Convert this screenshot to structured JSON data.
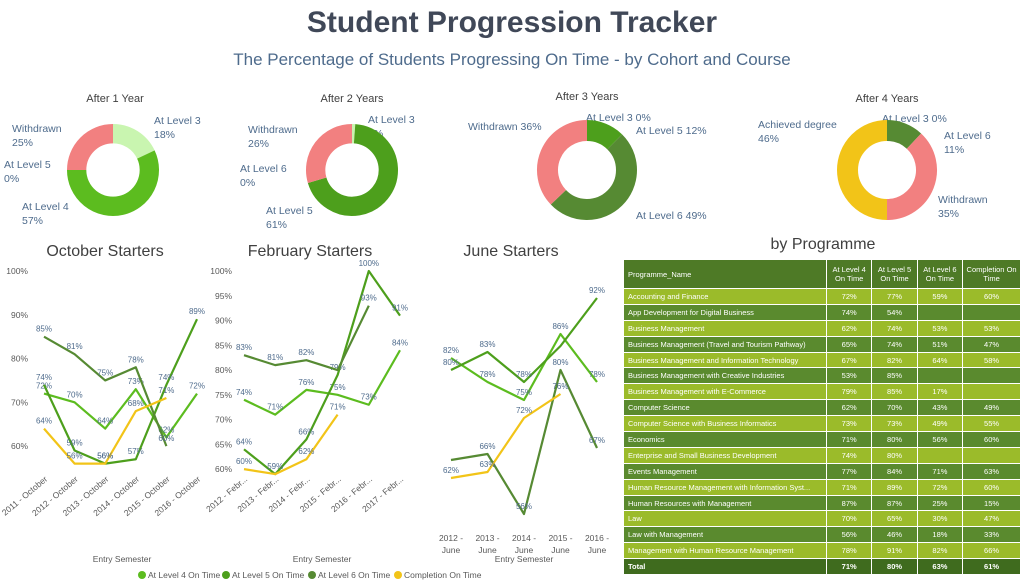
{
  "header": {
    "title": "Student Progression Tracker",
    "subtitle": "The Percentage of Students Progressing On Time - by Cohort and Course"
  },
  "colors": {
    "level3": "#c9f5b0",
    "level4": "#5cbc1f",
    "level5": "#4d9f1c",
    "level6": "#568a33",
    "withdrawn": "#f28080",
    "degree": "#f2c418",
    "completion": "#f2c418",
    "table_header": "#4e7a26",
    "table_light": "#9bbb2a",
    "table_dark": "#5a8a2e"
  },
  "chart_data": [
    {
      "type": "pie",
      "title": "After 1 Year",
      "slices": [
        {
          "label": "At Level 3",
          "value": 18,
          "color": "#c9f5b0"
        },
        {
          "label": "At Level 4",
          "value": 57,
          "color": "#5cbc1f"
        },
        {
          "label": "At Level 5",
          "value": 0,
          "color": "#4d9f1c"
        },
        {
          "label": "Withdrawn",
          "value": 25,
          "color": "#f28080"
        }
      ]
    },
    {
      "type": "pie",
      "title": "After 2 Years",
      "slices": [
        {
          "label": "At Level 3",
          "value": 1,
          "color": "#c9f5b0"
        },
        {
          "label": "At Level 5",
          "value": 61,
          "color": "#4d9f1c"
        },
        {
          "label": "At Level 6",
          "value": 0,
          "color": "#568a33"
        },
        {
          "label": "Withdrawn",
          "value": 26,
          "color": "#f28080"
        }
      ]
    },
    {
      "type": "pie",
      "title": "After 3 Years",
      "slices": [
        {
          "label": "At Level 3",
          "value": 0,
          "color": "#c9f5b0"
        },
        {
          "label": "At Level 5",
          "value": 12,
          "color": "#4d9f1c"
        },
        {
          "label": "At Level 6",
          "value": 49,
          "color": "#568a33"
        },
        {
          "label": "Withdrawn",
          "value": 36,
          "color": "#f28080"
        }
      ]
    },
    {
      "type": "pie",
      "title": "After 4 Years",
      "slices": [
        {
          "label": "At Level 3",
          "value": 0,
          "color": "#c9f5b0"
        },
        {
          "label": "At Level 6",
          "value": 11,
          "color": "#568a33"
        },
        {
          "label": "Withdrawn",
          "value": 35,
          "color": "#f28080"
        },
        {
          "label": "Achieved degree",
          "value": 46,
          "color": "#f2c418"
        }
      ]
    },
    {
      "type": "line",
      "title": "October Starters",
      "xlabel": "Entry Semester",
      "categories": [
        "2011 - October",
        "2012 - October",
        "2013 - October",
        "2014 - October",
        "2015 - October",
        "2016 - October"
      ],
      "yticks": [
        "60%",
        "70%",
        "80%",
        "90%",
        "100%"
      ],
      "ylim": [
        55,
        100
      ],
      "series": [
        {
          "name": "At Level 4 On Time",
          "color": "#5cbc1f",
          "values": [
            72,
            70,
            64,
            73,
            62,
            72
          ],
          "labels": [
            "72%",
            "70%",
            "64%",
            "73%",
            "62%",
            "72%"
          ]
        },
        {
          "name": "At Level 5 On Time",
          "color": "#4d9f1c",
          "values": [
            74,
            59,
            56,
            57,
            74,
            89
          ],
          "labels": [
            "74%",
            "59%",
            "56%",
            "57%",
            "74%",
            "89%"
          ]
        },
        {
          "name": "At Level 6 On Time",
          "color": "#568a33",
          "values": [
            85,
            81,
            75,
            78,
            60,
            null
          ],
          "labels": [
            "85%",
            "81%",
            "75%",
            "78%",
            "60%",
            ""
          ]
        },
        {
          "name": "Completion On Time",
          "color": "#f2c418",
          "values": [
            64,
            56,
            56,
            68,
            71,
            null
          ],
          "labels": [
            "64%",
            "56%",
            "56%",
            "68%",
            "71%",
            ""
          ]
        }
      ]
    },
    {
      "type": "line",
      "title": "February Starters",
      "xlabel": "Entry Semester",
      "categories": [
        "2012 - February",
        "2013 - February",
        "2014 - February",
        "2015 - February",
        "2016 - February",
        "2017 - February"
      ],
      "yticks": [
        "60%",
        "65%",
        "70%",
        "75%",
        "80%",
        "85%",
        "90%",
        "95%",
        "100%"
      ],
      "ylim": [
        57,
        100
      ],
      "series": [
        {
          "name": "At Level 4 On Time",
          "color": "#5cbc1f",
          "values": [
            74,
            71,
            76,
            75,
            73,
            84
          ],
          "labels": [
            "74%",
            "71%",
            "76%",
            "75%",
            "73%",
            "84%"
          ]
        },
        {
          "name": "At Level 5 On Time",
          "color": "#4d9f1c",
          "values": [
            64,
            59,
            66,
            79,
            100,
            91
          ],
          "labels": [
            "64%",
            "59%",
            "66%",
            "79%",
            "100%",
            "91%"
          ]
        },
        {
          "name": "At Level 6 On Time",
          "color": "#568a33",
          "values": [
            83,
            81,
            82,
            80,
            93,
            null
          ],
          "labels": [
            "83%",
            "81%",
            "82%",
            "",
            "93%",
            ""
          ]
        },
        {
          "name": "Completion On Time",
          "color": "#f2c418",
          "values": [
            60,
            59,
            62,
            71,
            null,
            null
          ],
          "labels": [
            "60%",
            "",
            "62%",
            "71%",
            "",
            ""
          ]
        }
      ]
    },
    {
      "type": "line",
      "title": "June Starters",
      "xlabel": "Entry Semester",
      "categories": [
        "2012 - June",
        "2013 - June",
        "2014 - June",
        "2015 - June",
        "2016 - June"
      ],
      "ylim": [
        55,
        95
      ],
      "series": [
        {
          "name": "At Level 4 On Time",
          "color": "#5cbc1f",
          "values": [
            82,
            78,
            75,
            86,
            78
          ],
          "labels": [
            "82%",
            "78%",
            "75%",
            "86%",
            "78%"
          ]
        },
        {
          "name": "At Level 5 On Time",
          "color": "#4d9f1c",
          "values": [
            80,
            83,
            78,
            84,
            92
          ],
          "labels": [
            "80%",
            "83%",
            "78%",
            "",
            "92%"
          ]
        },
        {
          "name": "At Level 6 On Time",
          "color": "#568a33",
          "values": [
            65,
            66,
            56,
            80,
            67
          ],
          "labels": [
            "",
            "66%",
            "56%",
            "80%",
            "67%"
          ]
        },
        {
          "name": "Completion On Time",
          "color": "#f2c418",
          "values": [
            62,
            63,
            72,
            76,
            null
          ],
          "labels": [
            "62%",
            "63%",
            "72%",
            "76%",
            ""
          ]
        }
      ]
    },
    {
      "type": "table",
      "title": "by Programme",
      "columns": [
        "Programme_Name",
        "At Level 4 On Time",
        "At Level 5 On Time",
        "At Level 6 On Time",
        "Completion On Time"
      ],
      "rows": [
        [
          "Accounting and Finance",
          "72%",
          "77%",
          "59%",
          "60%"
        ],
        [
          "App Development for Digital Business",
          "74%",
          "54%",
          "",
          ""
        ],
        [
          "Business Management",
          "62%",
          "74%",
          "53%",
          "53%"
        ],
        [
          "Business Management (Travel and Tourism Pathway)",
          "65%",
          "74%",
          "51%",
          "47%"
        ],
        [
          "Business Management and Information Technology",
          "67%",
          "82%",
          "64%",
          "58%"
        ],
        [
          "Business Management with Creative Industries",
          "53%",
          "85%",
          "",
          ""
        ],
        [
          "Business Management with E-Commerce",
          "79%",
          "85%",
          "17%",
          ""
        ],
        [
          "Computer Science",
          "62%",
          "70%",
          "43%",
          "49%"
        ],
        [
          "Computer Science with Business Informatics",
          "73%",
          "73%",
          "49%",
          "55%"
        ],
        [
          "Economics",
          "71%",
          "80%",
          "56%",
          "60%"
        ],
        [
          "Enterprise and Small Business Development",
          "74%",
          "80%",
          "",
          ""
        ],
        [
          "Events Management",
          "77%",
          "84%",
          "71%",
          "63%"
        ],
        [
          "Human Resource Management with Information Syst...",
          "71%",
          "89%",
          "72%",
          "60%"
        ],
        [
          "Human Resources with Management",
          "87%",
          "87%",
          "25%",
          "15%"
        ],
        [
          "Law",
          "70%",
          "65%",
          "30%",
          "47%"
        ],
        [
          "Law with Management",
          "56%",
          "46%",
          "18%",
          "33%"
        ],
        [
          "Management with Human Resource Management",
          "78%",
          "91%",
          "82%",
          "66%"
        ]
      ],
      "total": [
        "Total",
        "71%",
        "80%",
        "63%",
        "61%"
      ]
    }
  ]
}
